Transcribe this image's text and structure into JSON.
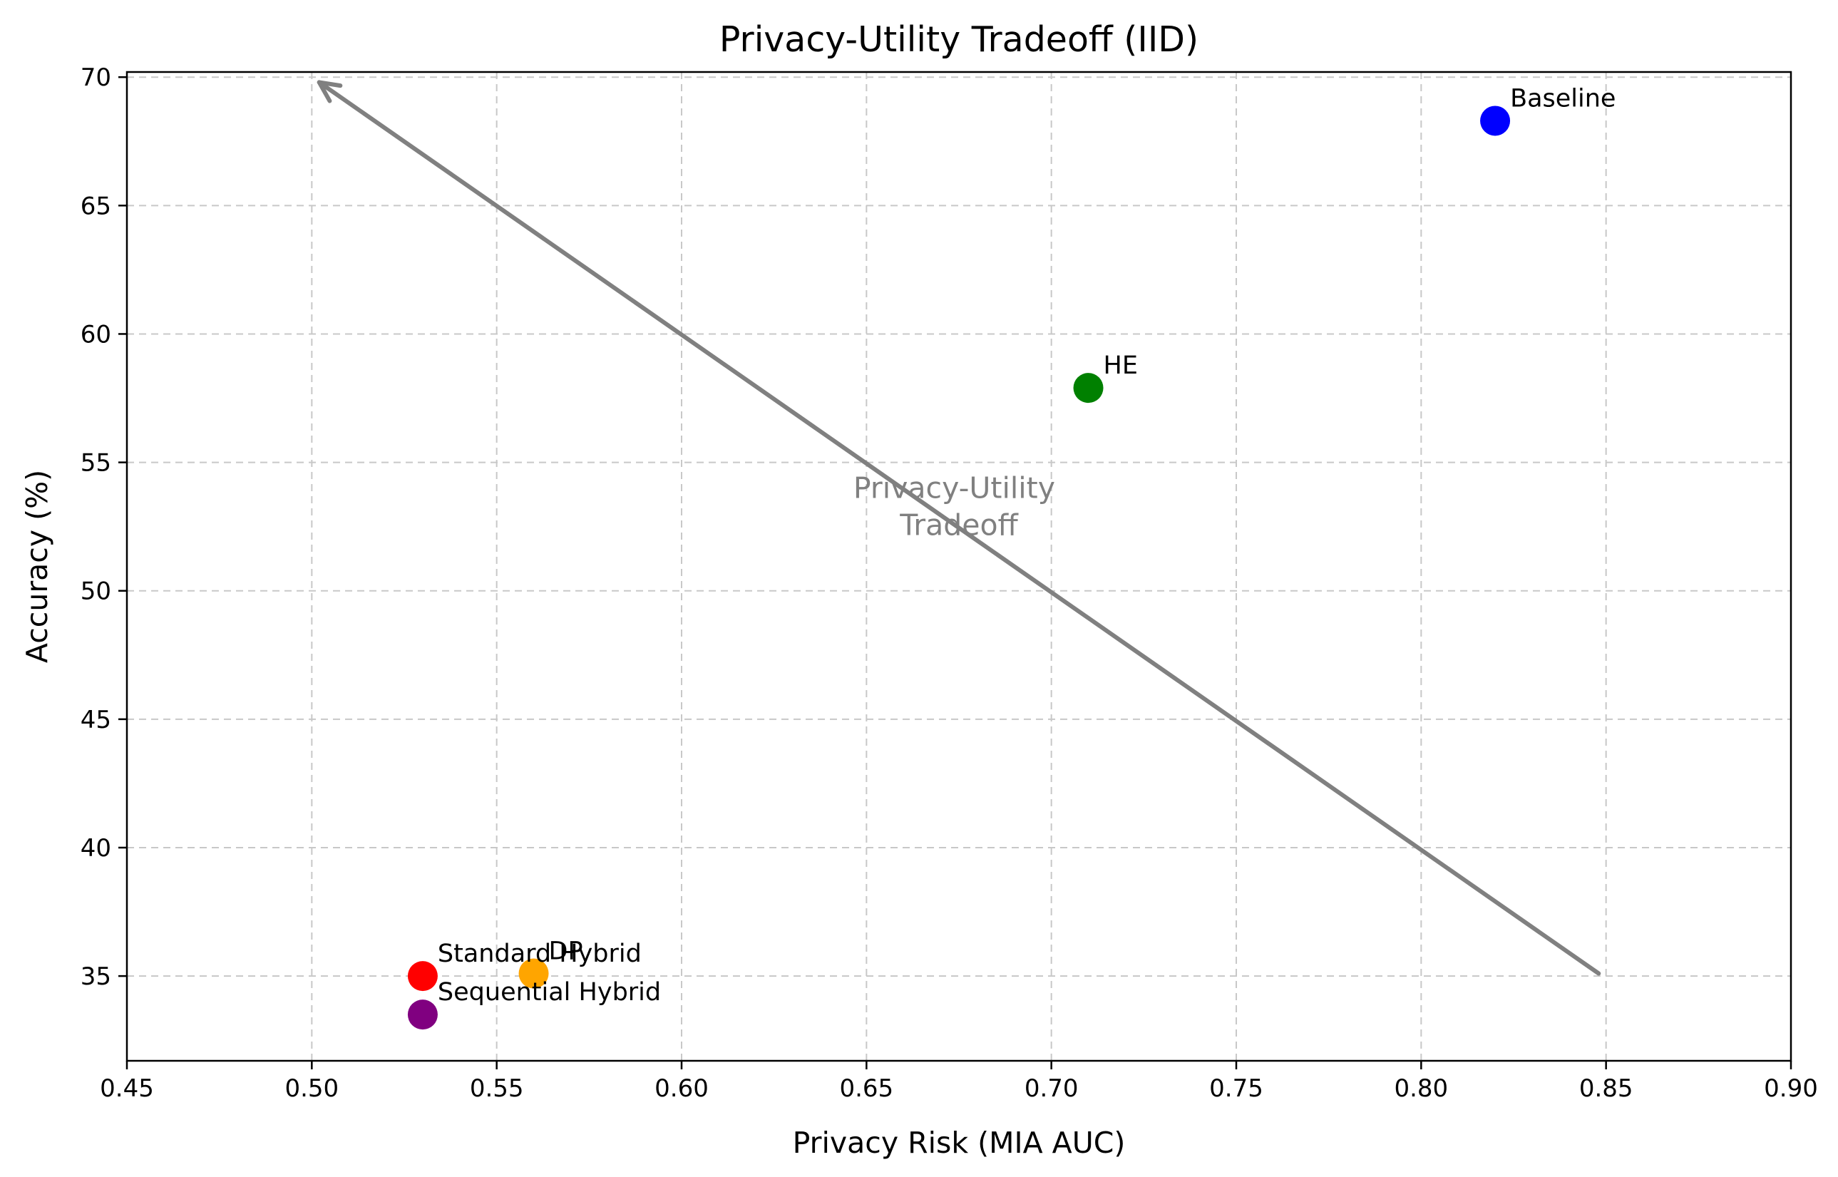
{
  "chart_data": {
    "type": "scatter",
    "title": "Privacy-Utility Tradeoff (IID)",
    "xlabel": "Privacy Risk (MIA AUC)",
    "ylabel": "Accuracy (%)",
    "xlim": [
      0.45,
      0.9
    ],
    "ylim": [
      31.7,
      70.2
    ],
    "xticks": [
      "0.45",
      "0.50",
      "0.55",
      "0.60",
      "0.65",
      "0.70",
      "0.75",
      "0.80",
      "0.85",
      "0.90"
    ],
    "yticks": [
      "35",
      "40",
      "45",
      "50",
      "55",
      "60",
      "65",
      "70"
    ],
    "grid": true,
    "points": [
      {
        "label": "Baseline",
        "x": 0.82,
        "y": 68.3,
        "color": "#0000ff"
      },
      {
        "label": "HE",
        "x": 0.71,
        "y": 57.9,
        "color": "#008000"
      },
      {
        "label": "DP",
        "x": 0.56,
        "y": 35.1,
        "color": "#ffa500"
      },
      {
        "label": "Standard Hybrid",
        "x": 0.53,
        "y": 35.0,
        "color": "#ff0000"
      },
      {
        "label": "Sequential Hybrid",
        "x": 0.53,
        "y": 33.5,
        "color": "#800080"
      }
    ],
    "annotation": {
      "lines": [
        "Privacy-Utility",
        "Tradeoff"
      ],
      "arrow_from": {
        "x": 0.848,
        "y": 35.1
      },
      "arrow_to": {
        "x": 0.502,
        "y": 69.8
      },
      "color": "#808080"
    }
  }
}
